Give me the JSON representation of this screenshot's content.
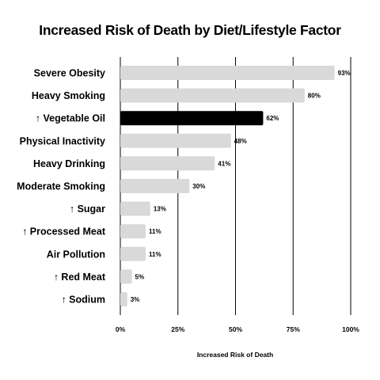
{
  "chart_data": {
    "type": "bar",
    "orientation": "horizontal",
    "title": "Increased Risk of Death by Diet/Lifestyle Factor",
    "xlabel": "Increased Risk of Death",
    "ylabel": "",
    "categories": [
      "Severe Obesity",
      "Heavy Smoking",
      "↑ Vegetable Oil",
      "Physical Inactivity",
      "Heavy Drinking",
      "Moderate Smoking",
      "↑ Sugar",
      "↑ Processed Meat",
      "Air Pollution",
      "↑ Red Meat",
      "↑ Sodium"
    ],
    "values": [
      93,
      80,
      62,
      48,
      41,
      30,
      13,
      11,
      11,
      5,
      3
    ],
    "value_labels": [
      "93%",
      "80%",
      "62%",
      "48%",
      "41%",
      "30%",
      "13%",
      "11%",
      "11%",
      "5%",
      "3%"
    ],
    "highlight_category": "↑ Vegetable Oil",
    "xlim": [
      0,
      100
    ],
    "xticks": [
      0,
      25,
      50,
      75,
      100
    ],
    "xtick_labels": [
      "0%",
      "25%",
      "50%",
      "75%",
      "100%"
    ],
    "grid": "vertical",
    "bar_color": "#d9d9d9",
    "highlight_color": "#000000",
    "grid_color": "#000000"
  }
}
